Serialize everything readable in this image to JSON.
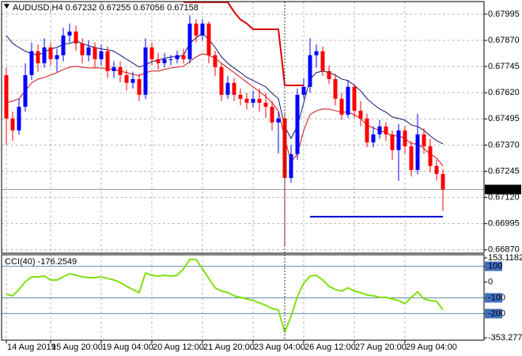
{
  "chart_data": [
    {
      "type": "candlestick",
      "title": "AUDUSD,H4  0.67232 0.67255 0.67056 0.67158",
      "bull_color": "#0000ff",
      "bear_color": "#ff0000",
      "grid": true,
      "xlim": [
        -0.75,
        75.5
      ],
      "ylim": [
        0.66854,
        0.68055
      ],
      "xticks": [
        {
          "value": 0,
          "label": "14 Aug 2019"
        },
        {
          "value": 7,
          "label": "15 Aug 20:00"
        },
        {
          "value": 15,
          "label": "19 Aug 04:00"
        },
        {
          "value": 23,
          "label": "20 Aug 12:00"
        },
        {
          "value": 31,
          "label": "21 Aug 20:00"
        },
        {
          "value": 39,
          "label": "23 Aug 04:00"
        },
        {
          "value": 47,
          "label": "26 Aug 12:00"
        },
        {
          "value": 55,
          "label": "27 Aug 20:00"
        },
        {
          "value": 63,
          "label": "29 Aug 04:00"
        }
      ],
      "yticks": [
        0.67995,
        {
          "value": 0.6787,
          "label": "0.67870"
        },
        0.67745,
        {
          "value": 0.6762,
          "label": "0.67620"
        },
        0.67495,
        {
          "value": 0.6737,
          "label": "0.67370"
        },
        0.67245,
        {
          "value": 0.6712,
          "label": "0.67120"
        },
        0.66995,
        {
          "value": 0.6687,
          "label": "0.66870"
        }
      ],
      "last_price": 0.67158,
      "open": [
        0.67704,
        0.67497,
        0.6744,
        0.67553,
        0.67704,
        0.67818,
        0.67761,
        0.67836,
        0.6778,
        0.67799,
        0.67893,
        0.67912,
        0.67855,
        0.67799,
        0.67836,
        0.6778,
        0.67818,
        0.67723,
        0.67742,
        0.67704,
        0.67667,
        0.67685,
        0.6761,
        0.67836,
        0.6778,
        0.67761,
        0.6778,
        0.6778,
        0.67799,
        0.6778,
        0.6795,
        0.67893,
        0.6795,
        0.67799,
        0.67742,
        0.6761,
        0.67667,
        0.6761,
        0.67591,
        0.67572,
        0.67591,
        0.67572,
        0.67553,
        0.67478,
        0.67497,
        0.67213,
        0.67327,
        0.6761,
        0.67648,
        0.67799,
        0.67818,
        0.67723,
        0.67685,
        0.67591,
        0.67515,
        0.67648,
        0.67534,
        0.67497,
        0.67383,
        0.67421,
        0.67459,
        0.67421,
        0.67346,
        0.6744,
        0.67364,
        0.67251,
        0.67421,
        0.67364,
        0.6727,
        0.67232
      ],
      "high": [
        0.6774,
        0.6753,
        0.6759,
        0.6776,
        0.6786,
        0.6785,
        0.6788,
        0.6786,
        0.6783,
        0.6793,
        0.6795,
        0.6794,
        0.6788,
        0.6787,
        0.6786,
        0.6785,
        0.6784,
        0.6777,
        0.6777,
        0.6773,
        0.6772,
        0.6771,
        0.6788,
        0.6786,
        0.6781,
        0.6781,
        0.678,
        0.6782,
        0.6783,
        0.6799,
        0.6797,
        0.6797,
        0.6796,
        0.6782,
        0.6776,
        0.677,
        0.6769,
        0.6764,
        0.6762,
        0.6763,
        0.6764,
        0.6762,
        0.6758,
        0.6753,
        0.6752,
        0.6737,
        0.6764,
        0.6769,
        0.6788,
        0.6785,
        0.6784,
        0.6775,
        0.6771,
        0.6762,
        0.6768,
        0.6766,
        0.6758,
        0.6752,
        0.6746,
        0.6749,
        0.6748,
        0.6744,
        0.6747,
        0.6746,
        0.6739,
        0.6752,
        0.6745,
        0.674,
        0.673,
        0.67255
      ],
      "low": [
        0.6737,
        0.6739,
        0.6742,
        0.6753,
        0.6768,
        0.6772,
        0.6774,
        0.6775,
        0.6772,
        0.6777,
        0.6786,
        0.6782,
        0.6776,
        0.6777,
        0.6774,
        0.6775,
        0.6769,
        0.6769,
        0.6767,
        0.6763,
        0.6764,
        0.6758,
        0.6759,
        0.6775,
        0.6773,
        0.6774,
        0.6775,
        0.6776,
        0.6776,
        0.6776,
        0.6786,
        0.6787,
        0.6776,
        0.677,
        0.6758,
        0.6759,
        0.6758,
        0.6756,
        0.6754,
        0.6755,
        0.6753,
        0.675,
        0.6744,
        0.6733,
        0.6689,
        0.6719,
        0.673,
        0.6759,
        0.6762,
        0.6774,
        0.677,
        0.6766,
        0.6756,
        0.6749,
        0.675,
        0.675,
        0.6746,
        0.6736,
        0.6736,
        0.674,
        0.6739,
        0.673,
        0.672,
        0.6733,
        0.6722,
        0.6723,
        0.6733,
        0.6724,
        0.672,
        0.67056
      ],
      "close": [
        0.67497,
        0.6744,
        0.67553,
        0.67704,
        0.67818,
        0.67761,
        0.67836,
        0.6778,
        0.67799,
        0.67893,
        0.67912,
        0.67855,
        0.67799,
        0.67836,
        0.6778,
        0.67818,
        0.67723,
        0.67742,
        0.67704,
        0.67667,
        0.67685,
        0.6761,
        0.67836,
        0.6778,
        0.67761,
        0.6778,
        0.6778,
        0.67799,
        0.6778,
        0.6795,
        0.67893,
        0.6795,
        0.67799,
        0.67742,
        0.6761,
        0.67667,
        0.6761,
        0.67591,
        0.67572,
        0.67591,
        0.67572,
        0.67553,
        0.67478,
        0.67497,
        0.67213,
        0.67327,
        0.6761,
        0.67648,
        0.67799,
        0.67818,
        0.67723,
        0.67685,
        0.67591,
        0.67515,
        0.67648,
        0.67534,
        0.67497,
        0.67383,
        0.67421,
        0.67459,
        0.67421,
        0.67346,
        0.6744,
        0.67364,
        0.67251,
        0.67421,
        0.67364,
        0.6727,
        0.67232,
        0.67158
      ],
      "lines": [
        {
          "color": "#14146e",
          "width": 1,
          "values": [
            0.67893,
            0.67855,
            0.67836,
            0.67818,
            0.67806,
            0.67799,
            0.67814,
            0.67829,
            0.67836,
            0.67852,
            0.67855,
            0.67867,
            0.67855,
            0.67844,
            0.67836,
            0.67829,
            0.67825,
            0.67818,
            0.67799,
            0.6778,
            0.67761,
            0.67742,
            0.67753,
            0.67768,
            0.67776,
            0.67784,
            0.67791,
            0.67791,
            0.67799,
            0.67855,
            0.67882,
            0.67904,
            0.67874,
            0.67836,
            0.67791,
            0.67761,
            0.67738,
            0.67716,
            0.67693,
            0.67678,
            0.67663,
            0.67648,
            0.67617,
            0.67591,
            0.67459,
            0.67402,
            0.67459,
            0.67572,
            0.67685,
            0.67716,
            0.67723,
            0.67716,
            0.67704,
            0.67685,
            0.67678,
            0.67655,
            0.67629,
            0.67591,
            0.67565,
            0.67542,
            0.67527,
            0.67504,
            0.67497,
            0.67489,
            0.67466,
            0.67459,
            0.6744,
            0.67414,
            0.67391,
            0.67376
          ]
        },
        {
          "color": "#d01010",
          "width": 1,
          "values": [
            0.67572,
            0.6758,
            0.67591,
            0.67629,
            0.67667,
            0.67685,
            0.67693,
            0.67704,
            0.67716,
            0.67731,
            0.67742,
            0.67746,
            0.67742,
            0.67738,
            0.67738,
            0.67738,
            0.67735,
            0.67731,
            0.67723,
            0.67716,
            0.67708,
            0.67701,
            0.67716,
            0.67723,
            0.67723,
            0.67731,
            0.67738,
            0.67742,
            0.67746,
            0.67768,
            0.67791,
            0.67806,
            0.67799,
            0.67784,
            0.67761,
            0.67738,
            0.67716,
            0.67693,
            0.6767,
            0.67648,
            0.67625,
            0.67602,
            0.67572,
            0.67534,
            0.67402,
            0.67289,
            0.67327,
            0.6744,
            0.67515,
            0.67534,
            0.67542,
            0.67542,
            0.67534,
            0.67527,
            0.67527,
            0.67515,
            0.67497,
            0.67466,
            0.67451,
            0.6744,
            0.67429,
            0.67414,
            0.67414,
            0.67402,
            0.67376,
            0.67376,
            0.67353,
            0.67327,
            0.67308,
            0.6727
          ]
        },
        {
          "color": "#e00000",
          "width": 2,
          "values": [
            null,
            null,
            null,
            null,
            null,
            null,
            null,
            null,
            null,
            null,
            null,
            null,
            null,
            null,
            null,
            null,
            null,
            null,
            null,
            null,
            null,
            null,
            null,
            null,
            null,
            null,
            null,
            null,
            0.68052,
            0.68052,
            0.68052,
            0.68052,
            0.68052,
            0.68052,
            0.68052,
            0.68052,
            0.68006,
            0.67969,
            0.6795,
            0.67923,
            0.67923,
            0.67923,
            0.67923,
            0.67923,
            0.67655,
            0.67655,
            0.67655,
            0.67655,
            null,
            null,
            null,
            null,
            null,
            null,
            null,
            null,
            null,
            null,
            null,
            null,
            null,
            null,
            null,
            null,
            null,
            null,
            null,
            null,
            null,
            null
          ]
        }
      ],
      "hline": {
        "value": 0.67028,
        "x": [
          48,
          69
        ],
        "color": "#0000cd"
      }
    },
    {
      "type": "line",
      "title": "CCI(40) -176.2549",
      "color": "#80e010",
      "ylim": [
        -353.2778,
        153.1182
      ],
      "yticks": [
        153.1182,
        100,
        0,
        -100,
        -200,
        -353.2778
      ],
      "levels": [
        100,
        -100,
        -200
      ],
      "level_color": "#5b8fb0",
      "values": [
        -77,
        -87,
        -47,
        3,
        33,
        33,
        38,
        13,
        13,
        33,
        53,
        43,
        33,
        28,
        28,
        33,
        23,
        13,
        -2,
        -27,
        -47,
        -67,
        58,
        43,
        38,
        43,
        38,
        43,
        83,
        143,
        143,
        83,
        23,
        -37,
        -57,
        -67,
        -87,
        -97,
        -107,
        -117,
        -132,
        -147,
        -167,
        -177,
        -317,
        -217,
        -92,
        -7,
        38,
        43,
        13,
        -27,
        -47,
        -57,
        -37,
        -57,
        -67,
        -82,
        -87,
        -97,
        -97,
        -107,
        -117,
        -137,
        -97,
        -62,
        -107,
        -117,
        -122,
        -176
      ]
    }
  ]
}
